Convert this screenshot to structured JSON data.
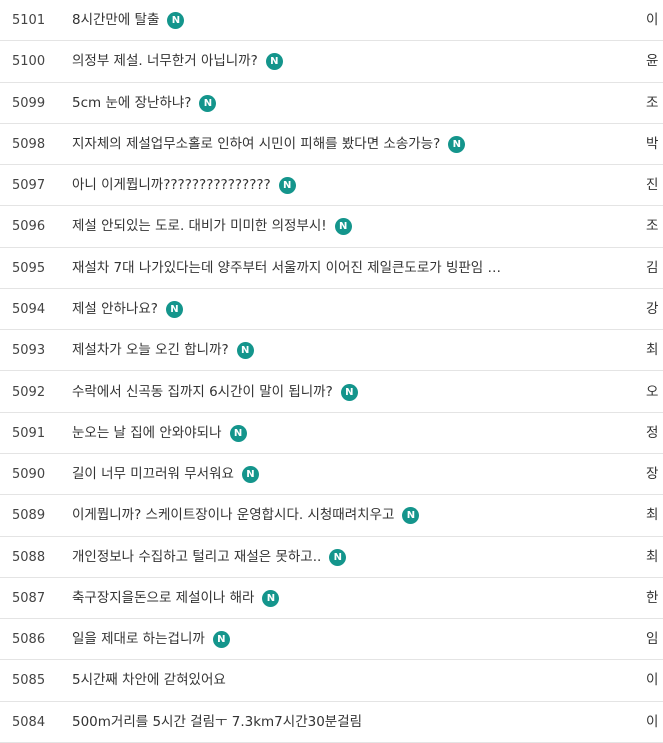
{
  "badge_label": "N",
  "rows": [
    {
      "number": "5101",
      "title": "8시간만에 탈출",
      "new": true,
      "author": "이"
    },
    {
      "number": "5100",
      "title": "의정부 제설. 너무한거 아닙니까?",
      "new": true,
      "author": "윤"
    },
    {
      "number": "5099",
      "title": "5cm 눈에 장난하냐?",
      "new": true,
      "author": "조"
    },
    {
      "number": "5098",
      "title": "지자체의 제설업무소홀로 인하여 시민이 피해를 봤다면 소송가능?",
      "new": true,
      "author": "박"
    },
    {
      "number": "5097",
      "title": "아니 이게뭡니까???????????????",
      "new": true,
      "author": "진"
    },
    {
      "number": "5096",
      "title": "제설 안되있는 도로. 대비가 미미한 의정부시!",
      "new": true,
      "author": "조"
    },
    {
      "number": "5095",
      "title": "재설차 7대 나가있다는데 양주부터 서울까지 이어진 제일큰도로가 빙판임 …",
      "new": false,
      "author": "김"
    },
    {
      "number": "5094",
      "title": "제설 안하나요?",
      "new": true,
      "author": "강"
    },
    {
      "number": "5093",
      "title": "제설차가 오늘 오긴 합니까?",
      "new": true,
      "author": "최"
    },
    {
      "number": "5092",
      "title": "수락에서 신곡동 집까지 6시간이 말이 됩니까?",
      "new": true,
      "author": "오"
    },
    {
      "number": "5091",
      "title": "눈오는 날 집에 안와야되나",
      "new": true,
      "author": "정"
    },
    {
      "number": "5090",
      "title": "길이 너무 미끄러워 무서워요",
      "new": true,
      "author": "장"
    },
    {
      "number": "5089",
      "title": "이게뭡니까? 스케이트장이나 운영합시다. 시청때려치우고",
      "new": true,
      "author": "최"
    },
    {
      "number": "5088",
      "title": "개인정보나 수집하고 털리고 재설은 못하고..",
      "new": true,
      "author": "최"
    },
    {
      "number": "5087",
      "title": "축구장지을돈으로 제설이나 해라",
      "new": true,
      "author": "한"
    },
    {
      "number": "5086",
      "title": "일을 제대로 하는겁니까",
      "new": true,
      "author": "임"
    },
    {
      "number": "5085",
      "title": "5시간째 차안에 갇혀있어요",
      "new": false,
      "author": "이"
    },
    {
      "number": "5084",
      "title": "500m거리를 5시간 걸림ㅜ 7.3km7시간30분걸림",
      "new": false,
      "author": "이"
    }
  ]
}
